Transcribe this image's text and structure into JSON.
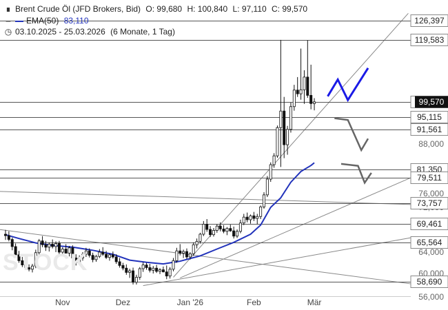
{
  "header": {
    "instrument": "Brent Crude Öl (JFD Brokers, Bid)",
    "open": "O: 99,680",
    "high": "H: 100,840",
    "low": "L: 97,110",
    "close": "C: 99,570",
    "ema_label": "EMA(50)",
    "ema_value": "83,110",
    "range": "03.10.2025 - 25.03.2026",
    "interval": "(6 Monate, 1 Tag)"
  },
  "watermark": "STOCK",
  "colors": {
    "candle": "#111111",
    "ema": "#2233bb",
    "trendline": "#888888",
    "level": "#555555",
    "blue_arrow": "#1a1ae6",
    "grey_arrow": "#666666",
    "label_dark_bg": "#111111"
  },
  "chart_data": {
    "type": "candlestick",
    "title": "Brent Crude Öl (JFD Brokers, Bid)",
    "ylim": [
      55,
      130
    ],
    "x_ticks": [
      "Nov",
      "Dez",
      "Jan '26",
      "Feb",
      "Mär"
    ],
    "y_ticks": [
      "88,000",
      "76,000",
      "72,000",
      "64,000",
      "60,000",
      "56,000"
    ],
    "level_labels": [
      "126,397",
      "119,583",
      "99,570",
      "95,115",
      "91,561",
      "81,350",
      "79,511",
      "73,757",
      "69,461",
      "65,564",
      "58,690"
    ],
    "current_price_label": "99,570",
    "candles": [
      {
        "o": 67.3,
        "h": 68.2,
        "l": 66.1,
        "c": 67.0
      },
      {
        "o": 67.0,
        "h": 67.9,
        "l": 65.8,
        "c": 66.2
      },
      {
        "o": 66.2,
        "h": 66.6,
        "l": 64.3,
        "c": 64.9
      },
      {
        "o": 64.9,
        "h": 65.4,
        "l": 63.1,
        "c": 63.5
      },
      {
        "o": 63.5,
        "h": 64.2,
        "l": 62.0,
        "c": 62.4
      },
      {
        "o": 62.4,
        "h": 63.1,
        "l": 61.2,
        "c": 61.6
      },
      {
        "o": 61.6,
        "h": 62.3,
        "l": 60.7,
        "c": 61.1
      },
      {
        "o": 61.1,
        "h": 61.7,
        "l": 60.4,
        "c": 60.8
      },
      {
        "o": 60.8,
        "h": 61.8,
        "l": 60.2,
        "c": 61.4
      },
      {
        "o": 61.4,
        "h": 64.4,
        "l": 61.0,
        "c": 63.9
      },
      {
        "o": 63.9,
        "h": 66.3,
        "l": 63.5,
        "c": 65.9
      },
      {
        "o": 65.9,
        "h": 66.9,
        "l": 64.8,
        "c": 65.2
      },
      {
        "o": 65.2,
        "h": 65.9,
        "l": 64.2,
        "c": 64.8
      },
      {
        "o": 64.8,
        "h": 65.6,
        "l": 64.1,
        "c": 65.3
      },
      {
        "o": 65.3,
        "h": 66.2,
        "l": 64.6,
        "c": 64.9
      },
      {
        "o": 64.9,
        "h": 65.8,
        "l": 64.0,
        "c": 65.4
      },
      {
        "o": 65.4,
        "h": 65.9,
        "l": 63.6,
        "c": 64.0
      },
      {
        "o": 64.0,
        "h": 64.8,
        "l": 63.3,
        "c": 64.5
      },
      {
        "o": 64.5,
        "h": 65.3,
        "l": 63.9,
        "c": 63.8
      },
      {
        "o": 63.8,
        "h": 65.0,
        "l": 63.2,
        "c": 64.7
      },
      {
        "o": 64.7,
        "h": 65.1,
        "l": 62.5,
        "c": 62.9
      },
      {
        "o": 62.9,
        "h": 63.6,
        "l": 61.5,
        "c": 62.0
      },
      {
        "o": 62.0,
        "h": 63.4,
        "l": 61.6,
        "c": 62.9
      },
      {
        "o": 62.9,
        "h": 64.0,
        "l": 62.4,
        "c": 63.6
      },
      {
        "o": 63.6,
        "h": 64.7,
        "l": 63.1,
        "c": 64.2
      },
      {
        "o": 64.2,
        "h": 64.6,
        "l": 63.0,
        "c": 63.4
      },
      {
        "o": 63.4,
        "h": 63.9,
        "l": 62.1,
        "c": 62.6
      },
      {
        "o": 62.6,
        "h": 63.5,
        "l": 62.2,
        "c": 63.2
      },
      {
        "o": 63.2,
        "h": 64.5,
        "l": 62.9,
        "c": 64.0
      },
      {
        "o": 64.0,
        "h": 64.8,
        "l": 63.3,
        "c": 63.6
      },
      {
        "o": 63.6,
        "h": 64.2,
        "l": 62.7,
        "c": 63.0
      },
      {
        "o": 63.0,
        "h": 63.8,
        "l": 62.4,
        "c": 63.5
      },
      {
        "o": 63.5,
        "h": 64.1,
        "l": 62.8,
        "c": 63.1
      },
      {
        "o": 63.1,
        "h": 63.6,
        "l": 61.8,
        "c": 62.2
      },
      {
        "o": 62.2,
        "h": 62.9,
        "l": 61.1,
        "c": 61.5
      },
      {
        "o": 61.5,
        "h": 62.0,
        "l": 60.6,
        "c": 61.0
      },
      {
        "o": 61.0,
        "h": 61.7,
        "l": 59.8,
        "c": 60.2
      },
      {
        "o": 60.2,
        "h": 60.9,
        "l": 59.3,
        "c": 60.5
      },
      {
        "o": 60.5,
        "h": 61.1,
        "l": 58.2,
        "c": 58.6
      },
      {
        "o": 58.6,
        "h": 59.8,
        "l": 58.2,
        "c": 59.4
      },
      {
        "o": 59.4,
        "h": 61.2,
        "l": 59.0,
        "c": 60.9
      },
      {
        "o": 60.9,
        "h": 62.1,
        "l": 60.3,
        "c": 61.6
      },
      {
        "o": 61.6,
        "h": 62.0,
        "l": 60.7,
        "c": 61.1
      },
      {
        "o": 61.1,
        "h": 61.8,
        "l": 60.2,
        "c": 60.6
      },
      {
        "o": 60.6,
        "h": 61.4,
        "l": 60.0,
        "c": 61.0
      },
      {
        "o": 61.0,
        "h": 61.6,
        "l": 60.1,
        "c": 60.4
      },
      {
        "o": 60.4,
        "h": 61.0,
        "l": 59.9,
        "c": 60.7
      },
      {
        "o": 60.7,
        "h": 61.3,
        "l": 60.2,
        "c": 60.3
      },
      {
        "o": 60.3,
        "h": 61.5,
        "l": 59.1,
        "c": 59.6
      },
      {
        "o": 59.6,
        "h": 61.2,
        "l": 59.2,
        "c": 60.8
      },
      {
        "o": 60.8,
        "h": 62.9,
        "l": 60.4,
        "c": 62.4
      },
      {
        "o": 62.4,
        "h": 64.7,
        "l": 62.0,
        "c": 64.2
      },
      {
        "o": 64.2,
        "h": 65.3,
        "l": 63.4,
        "c": 63.8
      },
      {
        "o": 63.8,
        "h": 64.4,
        "l": 62.9,
        "c": 64.1
      },
      {
        "o": 64.1,
        "h": 64.6,
        "l": 62.7,
        "c": 63.1
      },
      {
        "o": 63.1,
        "h": 64.0,
        "l": 62.6,
        "c": 63.7
      },
      {
        "o": 63.7,
        "h": 65.6,
        "l": 63.3,
        "c": 65.2
      },
      {
        "o": 65.2,
        "h": 66.4,
        "l": 64.6,
        "c": 65.8
      },
      {
        "o": 65.8,
        "h": 67.6,
        "l": 65.4,
        "c": 67.3
      },
      {
        "o": 67.3,
        "h": 69.9,
        "l": 66.9,
        "c": 69.4
      },
      {
        "o": 69.4,
        "h": 70.2,
        "l": 67.8,
        "c": 68.3
      },
      {
        "o": 68.3,
        "h": 69.0,
        "l": 66.7,
        "c": 67.2
      },
      {
        "o": 67.2,
        "h": 68.6,
        "l": 66.8,
        "c": 68.1
      },
      {
        "o": 68.1,
        "h": 69.4,
        "l": 67.6,
        "c": 69.0
      },
      {
        "o": 69.0,
        "h": 69.7,
        "l": 67.9,
        "c": 68.4
      },
      {
        "o": 68.4,
        "h": 69.2,
        "l": 67.5,
        "c": 67.9
      },
      {
        "o": 67.9,
        "h": 68.8,
        "l": 67.1,
        "c": 68.5
      },
      {
        "o": 68.5,
        "h": 69.3,
        "l": 67.8,
        "c": 68.0
      },
      {
        "o": 68.0,
        "h": 68.9,
        "l": 66.4,
        "c": 66.9
      },
      {
        "o": 66.9,
        "h": 68.3,
        "l": 66.5,
        "c": 67.9
      },
      {
        "o": 67.9,
        "h": 70.1,
        "l": 67.5,
        "c": 69.6
      },
      {
        "o": 69.6,
        "h": 71.0,
        "l": 69.2,
        "c": 70.5
      },
      {
        "o": 70.5,
        "h": 71.2,
        "l": 69.7,
        "c": 70.1
      },
      {
        "o": 70.1,
        "h": 70.9,
        "l": 69.5,
        "c": 70.7
      },
      {
        "o": 70.7,
        "h": 71.3,
        "l": 69.9,
        "c": 70.3
      },
      {
        "o": 70.3,
        "h": 71.0,
        "l": 69.4,
        "c": 70.6
      },
      {
        "o": 70.6,
        "h": 72.8,
        "l": 70.2,
        "c": 72.2
      },
      {
        "o": 72.2,
        "h": 76.3,
        "l": 71.8,
        "c": 75.7
      },
      {
        "o": 75.7,
        "h": 79.9,
        "l": 75.2,
        "c": 79.2
      },
      {
        "o": 79.2,
        "h": 83.2,
        "l": 78.6,
        "c": 82.6
      },
      {
        "o": 82.6,
        "h": 85.6,
        "l": 81.8,
        "c": 84.9
      },
      {
        "o": 84.9,
        "h": 92.7,
        "l": 84.4,
        "c": 92.1
      },
      {
        "o": 92.1,
        "h": 119.6,
        "l": 82.0,
        "c": 96.9
      },
      {
        "o": 96.9,
        "h": 101.2,
        "l": 84.3,
        "c": 87.8
      },
      {
        "o": 87.8,
        "h": 92.6,
        "l": 85.2,
        "c": 91.6
      },
      {
        "o": 91.6,
        "h": 99.4,
        "l": 90.8,
        "c": 98.2
      },
      {
        "o": 98.2,
        "h": 105.1,
        "l": 97.0,
        "c": 103.4
      },
      {
        "o": 103.4,
        "h": 107.6,
        "l": 101.2,
        "c": 102.2
      },
      {
        "o": 102.2,
        "h": 116.8,
        "l": 100.3,
        "c": 103.5
      },
      {
        "o": 103.5,
        "h": 109.8,
        "l": 99.0,
        "c": 107.6
      },
      {
        "o": 107.6,
        "h": 119.5,
        "l": 100.9,
        "c": 101.7
      },
      {
        "o": 101.7,
        "h": 111.6,
        "l": 97.4,
        "c": 99.1
      },
      {
        "o": 99.1,
        "h": 100.8,
        "l": 97.1,
        "c": 99.6
      }
    ],
    "ema": [
      {
        "i": 0,
        "v": 67.2
      },
      {
        "i": 4,
        "v": 66.4
      },
      {
        "i": 9,
        "v": 65.5
      },
      {
        "i": 14,
        "v": 65.1
      },
      {
        "i": 20,
        "v": 64.8
      },
      {
        "i": 26,
        "v": 64.3
      },
      {
        "i": 32,
        "v": 63.6
      },
      {
        "i": 37,
        "v": 62.5
      },
      {
        "i": 42,
        "v": 62.1
      },
      {
        "i": 47,
        "v": 61.8
      },
      {
        "i": 52,
        "v": 62.3
      },
      {
        "i": 58,
        "v": 63.3
      },
      {
        "i": 63,
        "v": 64.5
      },
      {
        "i": 68,
        "v": 65.6
      },
      {
        "i": 73,
        "v": 67.3
      },
      {
        "i": 76,
        "v": 69.2
      },
      {
        "i": 79,
        "v": 72.0
      },
      {
        "i": 82,
        "v": 75.0
      },
      {
        "i": 85,
        "v": 78.5
      },
      {
        "i": 88,
        "v": 80.9
      },
      {
        "i": 91,
        "v": 82.4
      },
      {
        "i": 92,
        "v": 83.1
      }
    ],
    "levels": [
      126.397,
      119.583,
      99.57,
      95.115,
      91.561,
      81.35,
      79.511,
      73.757,
      69.461,
      65.564,
      58.69
    ],
    "trendlines": [
      {
        "from": {
          "i": -3,
          "v": 68.4
        },
        "to": {
          "i": 121,
          "v": 58.3
        }
      },
      {
        "from": {
          "i": -3,
          "v": 76.5
        },
        "to": {
          "i": 121,
          "v": 73.2
        }
      },
      {
        "from": {
          "i": 41,
          "v": 58.0
        },
        "to": {
          "i": 121,
          "v": 66.6
        }
      },
      {
        "from": {
          "i": 52,
          "v": 59.3
        },
        "to": {
          "i": 121,
          "v": 79.6
        }
      },
      {
        "from": {
          "i": 50,
          "v": 59.4
        },
        "to": {
          "i": 120,
          "v": 129.0
        }
      }
    ],
    "projections": [
      {
        "name": "bullish",
        "points": [
          {
            "i": 96,
            "v": 101.4
          },
          {
            "i": 99,
            "v": 106.8
          },
          {
            "i": 102,
            "v": 100.2
          },
          {
            "i": 108,
            "v": 110.5
          }
        ]
      },
      {
        "name": "bearish_1",
        "points": [
          {
            "i": 98,
            "v": 94.8
          },
          {
            "i": 102,
            "v": 94.3
          },
          {
            "i": 106,
            "v": 86.4
          },
          {
            "i": 108,
            "v": 89.3
          }
        ]
      },
      {
        "name": "bearish_2",
        "points": [
          {
            "i": 100,
            "v": 82.8
          },
          {
            "i": 105,
            "v": 82.3
          },
          {
            "i": 107,
            "v": 78.4
          },
          {
            "i": 109,
            "v": 80.6
          }
        ]
      }
    ]
  }
}
